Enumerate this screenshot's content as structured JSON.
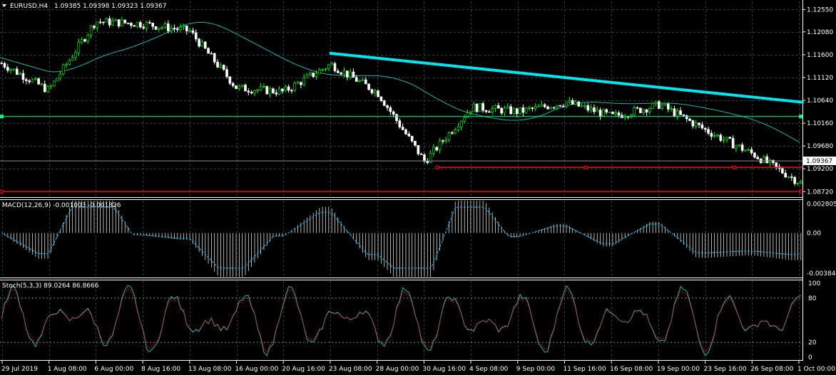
{
  "symbol_header": {
    "symbol": "EURUSD,H4",
    "ohlc": "1.09385 1.09398 1.09323 1.09367"
  },
  "price_axis": {
    "ticks": [
      "1.12550",
      "1.12080",
      "1.11600",
      "1.11120",
      "1.10640",
      "1.10160",
      "1.09680",
      "1.09200",
      "1.08720"
    ],
    "current_price": "1.09367",
    "current_price_value": 1.09367,
    "range": [
      1.0862,
      1.1272
    ]
  },
  "time_axis": {
    "labels": [
      "29 Jul 2019",
      "1 Aug 08:00",
      "6 Aug 00:00",
      "8 Aug 16:00",
      "13 Aug 08:00",
      "16 Aug 00:00",
      "20 Aug 16:00",
      "23 Aug 08:00",
      "28 Aug 00:00",
      "30 Aug 16:00",
      "4 Sep 08:00",
      "9 Sep 00:00",
      "11 Sep 16:00",
      "16 Sep 08:00",
      "19 Sep 00:00",
      "23 Sep 16:00",
      "26 Sep 08:00",
      "1 Oct 00:00"
    ]
  },
  "macd": {
    "title": "MACD(12,26,9) -0.001003 -0.001826",
    "ticks": [
      "0.002805",
      "0.00",
      "-0.003845"
    ],
    "range": [
      -0.0042,
      0.0031
    ]
  },
  "stoch": {
    "title": "Stoch(5,3,3) 89.0264 86.8666",
    "ticks": [
      "100",
      "80",
      "20",
      "0"
    ],
    "range": [
      -3,
      103
    ]
  },
  "colors": {
    "background": "#000000",
    "grid": "#2a3c44",
    "bull_candle": "#00ff00",
    "bear_candle": "#ffffff",
    "moving_average": "#20b2aa",
    "trendline": "#00e5ee",
    "horizontal_level": "#00ff7f",
    "support_lines": "#ff0000",
    "macd_histogram": "#ffffff",
    "macd_signal": "#00bfff",
    "stoch_main": "#20b2aa",
    "stoch_signal": "#ff0000"
  },
  "chart_data": {
    "type": "line",
    "title": "EURUSD,H4",
    "xlabel": "",
    "ylabel": "",
    "ylim": [
      1.0862,
      1.1272
    ],
    "grid": true,
    "x": [
      "29 Jul 2019",
      "1 Aug 08:00",
      "6 Aug 00:00",
      "8 Aug 16:00",
      "13 Aug 08:00",
      "16 Aug 00:00",
      "20 Aug 16:00",
      "23 Aug 08:00",
      "28 Aug 00:00",
      "30 Aug 16:00",
      "4 Sep 08:00",
      "9 Sep 00:00",
      "11 Sep 16:00",
      "16 Sep 08:00",
      "19 Sep 00:00",
      "23 Sep 16:00",
      "26 Sep 08:00",
      "1 Oct 00:00"
    ],
    "series": [
      {
        "values": [
          1.1142,
          1.1085,
          1.123,
          1.1225,
          1.121,
          1.109,
          1.1082,
          1.114,
          1.108,
          1.0935,
          1.105,
          1.104,
          1.106,
          1.103,
          1.1055,
          1.1,
          1.095,
          1.089
        ]
      }
    ],
    "levels": {
      "trendline_start": 1.1163,
      "trendline_end": 1.106,
      "horizontal_green": 1.103,
      "red_support_upper": 1.0923,
      "red_support_lower": 1.0872
    }
  }
}
